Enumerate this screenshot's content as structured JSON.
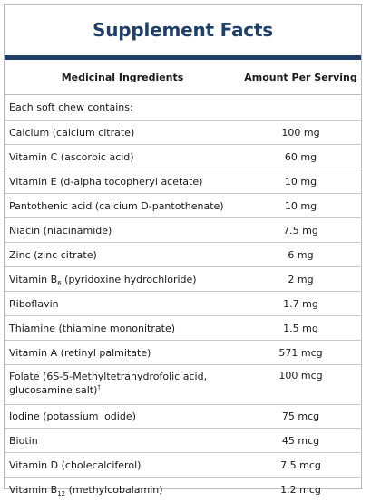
{
  "title": "Supplement Facts",
  "headers": {
    "ingredients": "Medicinal Ingredients",
    "amount": "Amount Per Serving"
  },
  "intro": "Each soft chew contains:",
  "rows": [
    {
      "pre": "Calcium (calcium citrate)",
      "sub": "",
      "post": "",
      "amount": "100 mg"
    },
    {
      "pre": "Vitamin C (ascorbic acid)",
      "sub": "",
      "post": "",
      "amount": "60 mg"
    },
    {
      "pre": "Vitamin E (d-alpha tocopheryl acetate)",
      "sub": "",
      "post": "",
      "amount": "10 mg"
    },
    {
      "pre": "Pantothenic acid (calcium D-pantothenate)",
      "sub": "",
      "post": "",
      "amount": "10 mg"
    },
    {
      "pre": "Niacin (niacinamide)",
      "sub": "",
      "post": "",
      "amount": "7.5 mg"
    },
    {
      "pre": "Zinc (zinc citrate)",
      "sub": "",
      "post": "",
      "amount": "6 mg"
    },
    {
      "pre": "Vitamin B",
      "sub": "6",
      "post": " (pyridoxine hydrochloride)",
      "amount": "2 mg"
    },
    {
      "pre": "Riboflavin",
      "sub": "",
      "post": "",
      "amount": "1.7 mg"
    },
    {
      "pre": "Thiamine (thiamine mononitrate)",
      "sub": "",
      "post": "",
      "amount": "1.5 mg"
    },
    {
      "pre": "Vitamin A (retinyl palmitate)",
      "sub": "",
      "post": "",
      "amount": "571 mcg"
    },
    {
      "pre": "Folate (6S-5-Methyltetrahydrofolic acid, glucosamine salt)",
      "sub": "",
      "post": "",
      "sup": "†",
      "amount": "100 mcg"
    },
    {
      "pre": "Iodine (potassium iodide)",
      "sub": "",
      "post": "",
      "amount": "75 mcg"
    },
    {
      "pre": "Biotin",
      "sub": "",
      "post": "",
      "amount": "45 mcg"
    },
    {
      "pre": "Vitamin D (cholecalciferol)",
      "sub": "",
      "post": "",
      "amount": "7.5 mcg"
    },
    {
      "pre": "Vitamin B",
      "sub": "12",
      "post": " (methylcobalamin)",
      "amount": "1.2 mcg"
    }
  ]
}
